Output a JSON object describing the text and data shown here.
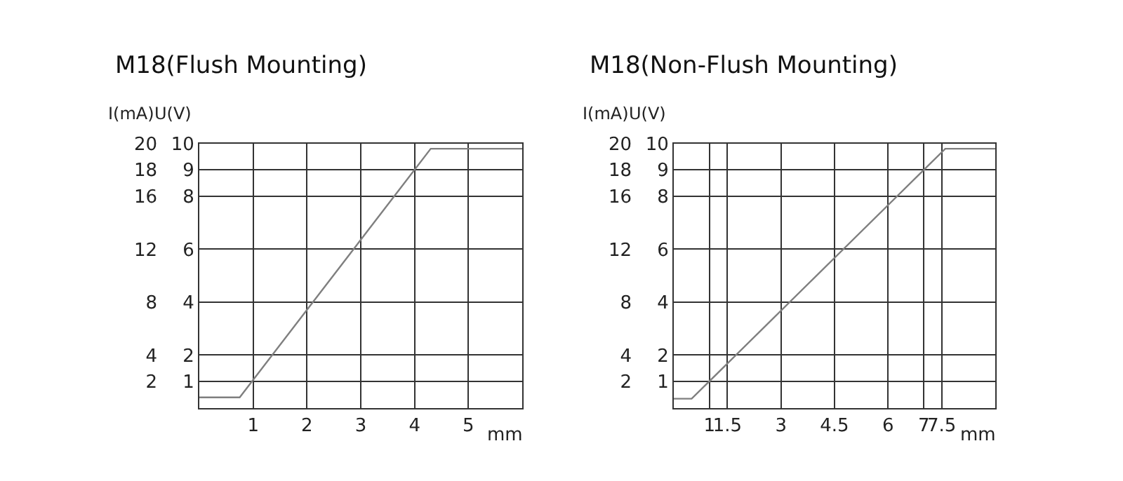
{
  "chart_data": [
    {
      "type": "line",
      "title": "M18(Flush Mounting)",
      "xlabel": "mm",
      "ylabel": "U(V)",
      "y2label": "I(mA)",
      "x": [
        0,
        0.75,
        4.3,
        6
      ],
      "series": [
        {
          "color": "#7f7f7f",
          "values": [
            0.4,
            0.4,
            9.8,
            9.8
          ]
        }
      ],
      "xlim": [
        0,
        6
      ],
      "xticks": [
        1,
        2,
        3,
        4,
        5
      ],
      "ylim": [
        0,
        10
      ],
      "yticks": [
        1,
        2,
        4,
        6,
        8,
        9,
        10
      ],
      "y2lim": [
        0,
        20
      ],
      "y2ticks": [
        2,
        4,
        8,
        12,
        16,
        18,
        20
      ],
      "grid": true
    },
    {
      "type": "line",
      "title": "M18(Non-Flush Mounting)",
      "xlabel": "mm",
      "ylabel": "U(V)",
      "y2label": "I(mA)",
      "x": [
        0,
        0.5,
        7.6,
        9
      ],
      "series": [
        {
          "color": "#7f7f7f",
          "values": [
            0.35,
            0.35,
            9.8,
            9.8
          ]
        }
      ],
      "xlim": [
        0,
        9
      ],
      "xticks": [
        1,
        1.5,
        3,
        4.5,
        6,
        7,
        7.5
      ],
      "ylim": [
        0,
        10
      ],
      "yticks": [
        1,
        2,
        4,
        6,
        8,
        9,
        10
      ],
      "y2lim": [
        0,
        20
      ],
      "y2ticks": [
        2,
        4,
        8,
        12,
        16,
        18,
        20
      ],
      "grid": true
    }
  ]
}
